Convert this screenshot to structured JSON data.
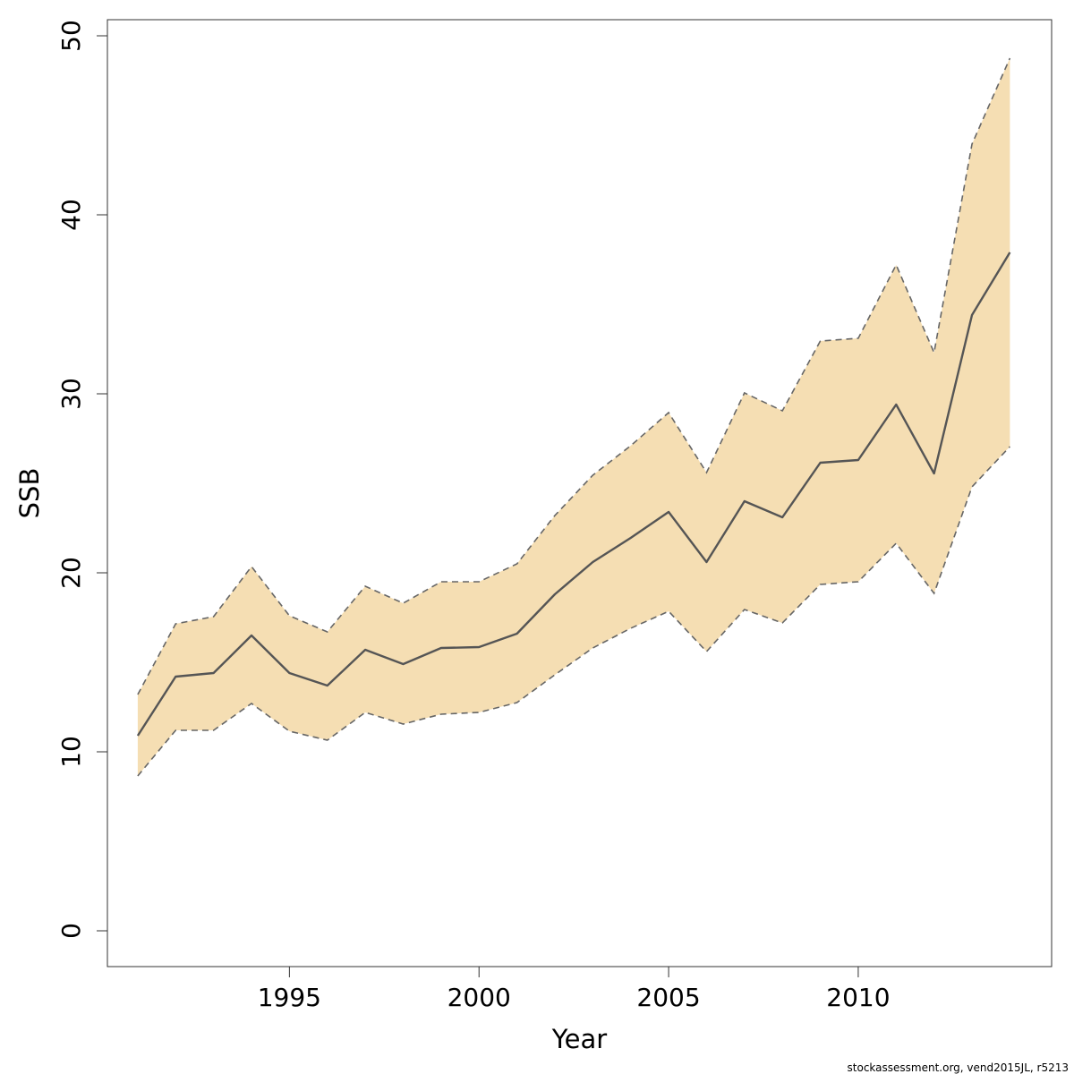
{
  "chart_data": {
    "type": "area",
    "xlabel": "Year",
    "ylabel": "SSB",
    "xlim": [
      1990.2,
      2015.1
    ],
    "ylim": [
      -2,
      50.9
    ],
    "x_ticks": [
      1995,
      2000,
      2005,
      2010
    ],
    "y_ticks": [
      0,
      10,
      20,
      30,
      40,
      50
    ],
    "grid": false,
    "x": [
      1991,
      1992,
      1993,
      1994,
      1995,
      1996,
      1997,
      1998,
      1999,
      2000,
      2001,
      2002,
      2003,
      2004,
      2005,
      2006,
      2007,
      2008,
      2009,
      2010,
      2011,
      2012,
      2013,
      2014
    ],
    "series": [
      {
        "role": "estimate",
        "values": [
          10.9,
          14.2,
          14.4,
          16.5,
          14.4,
          13.7,
          15.7,
          14.9,
          15.8,
          15.85,
          16.6,
          18.8,
          20.6,
          21.95,
          23.4,
          20.6,
          24.0,
          23.1,
          26.15,
          26.3,
          29.4,
          25.55,
          34.4,
          37.9
        ]
      },
      {
        "role": "upper",
        "values": [
          13.2,
          17.15,
          17.55,
          20.35,
          17.6,
          16.7,
          19.25,
          18.3,
          19.5,
          19.5,
          20.5,
          23.2,
          25.45,
          27.1,
          28.95,
          25.6,
          30.05,
          29.05,
          32.95,
          33.1,
          37.2,
          32.3,
          43.95,
          48.75
        ]
      },
      {
        "role": "lower",
        "values": [
          8.65,
          11.2,
          11.2,
          12.7,
          11.15,
          10.65,
          12.2,
          11.55,
          12.1,
          12.2,
          12.75,
          14.3,
          15.8,
          16.9,
          17.85,
          15.6,
          17.95,
          17.2,
          19.35,
          19.5,
          21.65,
          18.85,
          24.8,
          27.05
        ]
      }
    ],
    "colors": {
      "band_fill": "#f5deb3",
      "band_edge": "#666666",
      "estimate_line": "#555555",
      "axis": "#333333"
    }
  },
  "footer": {
    "note": "stockassessment.org, vend2015JL, r5213"
  }
}
